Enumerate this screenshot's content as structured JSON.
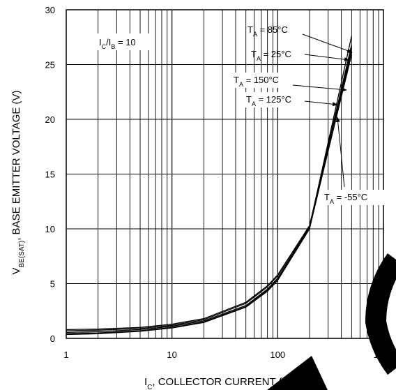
{
  "chart_data": {
    "type": "line",
    "x_scale": "log",
    "xlim": [
      1,
      1000
    ],
    "ylim": [
      0,
      30
    ],
    "xlabel": {
      "main": "I",
      "sub": "C",
      "rest": ", COLLECTOR CURRENT (mA)"
    },
    "ylabel": {
      "main": "V",
      "sub": "BE(SAT)",
      "rest": ", BASE EMITTER VOLTAGE (V)"
    },
    "x_ticks": [
      {
        "value": 1,
        "label": "1"
      },
      {
        "value": 10,
        "label": "10"
      },
      {
        "value": 100,
        "label": "100"
      },
      {
        "value": 1000,
        "label": "1000"
      }
    ],
    "y_ticks": [
      {
        "value": 0,
        "label": "0"
      },
      {
        "value": 5,
        "label": "5"
      },
      {
        "value": 10,
        "label": "10"
      },
      {
        "value": 15,
        "label": "15"
      },
      {
        "value": 20,
        "label": "20"
      },
      {
        "value": 25,
        "label": "25"
      },
      {
        "value": 30,
        "label": "30"
      }
    ],
    "grid": true,
    "condition": {
      "i1": "C",
      "i2": "B",
      "value": "10"
    },
    "series": [
      {
        "name": "T_A = 85°C",
        "label_main": "T",
        "label_sub": "A",
        "label_rest": " = 85°C",
        "x": [
          1,
          2,
          5,
          10,
          20,
          50,
          80,
          100,
          200,
          500
        ],
        "y": [
          0.55,
          0.62,
          0.8,
          1.1,
          1.6,
          3.0,
          4.5,
          5.5,
          10.2,
          27.6
        ]
      },
      {
        "name": "T_A = 25°C",
        "label_main": "T",
        "label_sub": "A",
        "label_rest": " = 25°C",
        "x": [
          1,
          2,
          5,
          10,
          20,
          50,
          80,
          100,
          200,
          500
        ],
        "y": [
          0.7,
          0.75,
          0.9,
          1.2,
          1.7,
          3.2,
          4.7,
          5.7,
          10.3,
          26.8
        ]
      },
      {
        "name": "T_A = 150°C",
        "label_main": "T",
        "label_sub": "A",
        "label_rest": " = 150°C",
        "x": [
          1,
          2,
          5,
          10,
          20,
          50,
          80,
          100,
          200,
          500
        ],
        "y": [
          0.35,
          0.42,
          0.65,
          0.95,
          1.45,
          2.85,
          4.3,
          5.3,
          10.0,
          26.2
        ]
      },
      {
        "name": "T_A = 125°C",
        "label_main": "T",
        "label_sub": "A",
        "label_rest": " = 125°C",
        "x": [
          1,
          2,
          5,
          10,
          20,
          50,
          80,
          100,
          200,
          500
        ],
        "y": [
          0.45,
          0.5,
          0.7,
          1.0,
          1.5,
          2.9,
          4.4,
          5.4,
          10.1,
          25.9
        ]
      },
      {
        "name": "T_A = -55°C",
        "label_main": "T",
        "label_sub": "A",
        "label_rest": " = -55°C",
        "x": [
          1,
          2,
          5,
          10,
          20,
          50,
          80,
          100,
          200,
          500
        ],
        "y": [
          0.8,
          0.85,
          1.0,
          1.3,
          1.8,
          3.3,
          4.8,
          5.8,
          10.3,
          26.5
        ]
      }
    ]
  }
}
